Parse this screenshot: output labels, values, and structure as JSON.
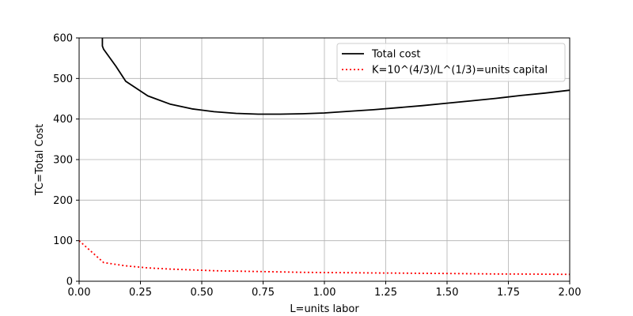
{
  "chart_data": {
    "type": "line",
    "title": "",
    "xlabel": "L=units labor",
    "ylabel": "TC=Total Cost",
    "xlim": [
      0,
      2
    ],
    "ylim": [
      0,
      600
    ],
    "xticks": [
      "0.00",
      "0.25",
      "0.50",
      "0.75",
      "1.00",
      "1.25",
      "1.50",
      "1.75",
      "2.00"
    ],
    "yticks": [
      "0",
      "100",
      "200",
      "300",
      "400",
      "500",
      "600"
    ],
    "grid": true,
    "legend_position": "top-right",
    "series": [
      {
        "name": "Total cost",
        "color": "#000000",
        "style": "solid",
        "x": [
          0.095,
          0.095,
          0.1,
          0.15,
          0.19,
          0.28,
          0.37,
          0.46,
          0.55,
          0.64,
          0.73,
          0.82,
          0.91,
          1.0,
          1.1,
          1.2,
          1.3,
          1.4,
          1.5,
          1.6,
          1.7,
          1.8,
          1.9,
          2.0
        ],
        "y": [
          600,
          580,
          572,
          530,
          493,
          457,
          437,
          425,
          418,
          414,
          412,
          412,
          413,
          415,
          419,
          423,
          428,
          433,
          439,
          445,
          451,
          458,
          464,
          471
        ]
      },
      {
        "name": "K=10^(4/3)/L^(1/3)=units capital",
        "color": "#ff0000",
        "style": "dotted",
        "x": [
          0.0,
          0.1,
          0.19,
          0.28,
          0.37,
          0.46,
          0.55,
          0.64,
          0.73,
          0.82,
          0.91,
          1.0,
          1.1,
          1.2,
          1.3,
          1.4,
          1.5,
          1.6,
          1.7,
          1.8,
          1.9,
          2.0
        ],
        "y": [
          100,
          46,
          38,
          33,
          30,
          28,
          26,
          25,
          24,
          23,
          22,
          21.5,
          21,
          20.5,
          20,
          19.5,
          19,
          18.5,
          18,
          17.8,
          17.4,
          17
        ]
      }
    ]
  }
}
